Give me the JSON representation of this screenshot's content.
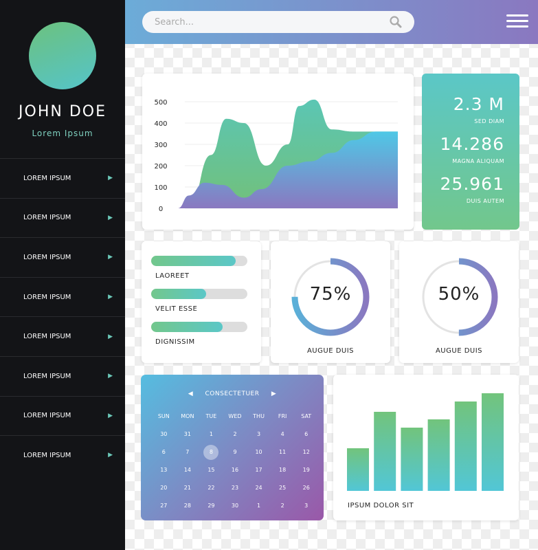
{
  "profile": {
    "name": "JOHN DOE",
    "subtitle": "Lorem Ipsum"
  },
  "menu": [
    "LOREM IPSUM",
    "LOREM IPSUM",
    "LOREM IPSUM",
    "LOREM IPSUM",
    "LOREM IPSUM",
    "LOREM IPSUM",
    "LOREM IPSUM",
    "LOREM IPSUM"
  ],
  "search": {
    "placeholder": "Search..."
  },
  "chart_data": [
    {
      "type": "area",
      "title": "",
      "y_ticks": [
        "500",
        "400",
        "300",
        "200",
        "100",
        "0"
      ],
      "ylim": [
        0,
        500
      ],
      "series": [
        {
          "name": "green",
          "color": "#6cc17e",
          "x": [
            0,
            5,
            15,
            22,
            30,
            40,
            50,
            55,
            62,
            70,
            80,
            100
          ],
          "y": [
            0,
            0,
            250,
            420,
            400,
            200,
            300,
            480,
            510,
            370,
            360,
            360
          ]
        },
        {
          "name": "purple",
          "color": "#7c7fc4",
          "x": [
            0,
            5,
            12,
            20,
            30,
            38,
            50,
            60,
            70,
            80,
            90,
            100
          ],
          "y": [
            0,
            60,
            120,
            110,
            50,
            90,
            200,
            220,
            260,
            320,
            360,
            360
          ]
        }
      ]
    },
    {
      "type": "bar",
      "title": "IPSUM DOLOR SIT",
      "values": [
        62,
        115,
        92,
        104,
        130,
        142
      ],
      "ylim": [
        0,
        150
      ]
    }
  ],
  "stats": [
    {
      "value": "2.3 M",
      "label": "SED DIAM"
    },
    {
      "value": "14.286",
      "label": "MAGNA ALIQUAM"
    },
    {
      "value": "25.961",
      "label": "DUIS AUTEM"
    }
  ],
  "progress": [
    {
      "label": "LAOREET",
      "value": 0.88
    },
    {
      "label": "VELIT ESSE",
      "value": 0.57
    },
    {
      "label": "DIGNISSIM",
      "value": 0.74
    }
  ],
  "donuts": [
    {
      "value_text": "75%",
      "value": 0.75,
      "label": "AUGUE DUIS"
    },
    {
      "value_text": "50%",
      "value": 0.5,
      "label": "AUGUE DUIS"
    }
  ],
  "calendar": {
    "title": "CONSECTETUER",
    "prev": "◀",
    "next": "▶",
    "days": [
      "SUN",
      "MON",
      "TUE",
      "WED",
      "THU",
      "FRI",
      "SAT"
    ],
    "dates": [
      "30",
      "31",
      "1",
      "2",
      "3",
      "4",
      "6",
      "6",
      "7",
      "8",
      "9",
      "10",
      "11",
      "12",
      "13",
      "14",
      "15",
      "16",
      "17",
      "18",
      "19",
      "20",
      "21",
      "22",
      "23",
      "24",
      "25",
      "26",
      "27",
      "28",
      "29",
      "30",
      "1",
      "2",
      "3"
    ],
    "selected": "8"
  },
  "colors": {
    "sidebar": "#131417",
    "accent_green": "#6cc17e",
    "accent_teal": "#55c4c9",
    "accent_purple": "#8a78c0"
  }
}
